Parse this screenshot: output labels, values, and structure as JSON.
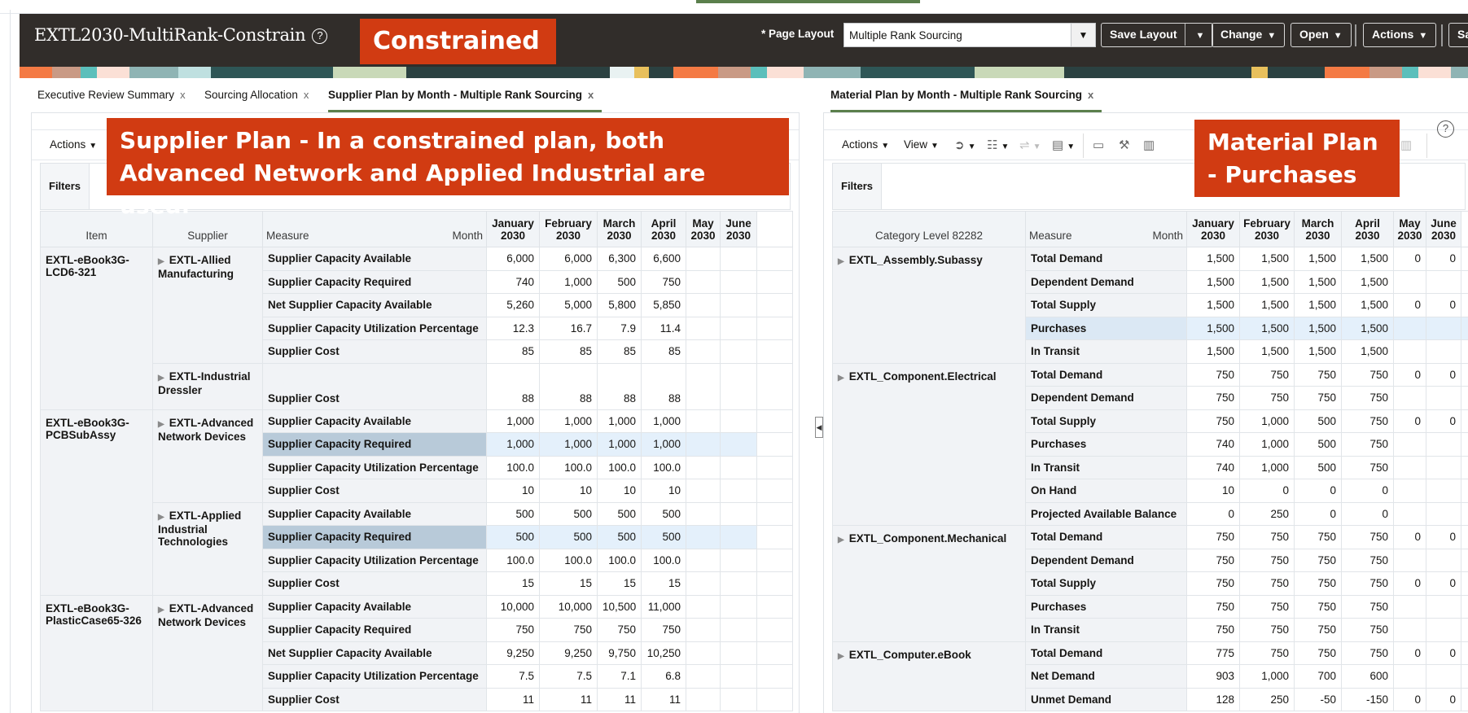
{
  "app": {
    "title": "EXTL2030-MultiRank-Constrain",
    "help_icon": "?",
    "callout_constrained": "Constrained"
  },
  "header": {
    "page_layout_label": "* Page Layout",
    "page_layout_value": "Multiple Rank Sourcing",
    "buttons": {
      "save_layout": "Save Layout",
      "change": "Change",
      "open": "Open",
      "actions": "Actions",
      "save_truncated": "Sa"
    },
    "caret": "▼"
  },
  "tabs_left": [
    {
      "label": "Executive Review Summary",
      "close": "x"
    },
    {
      "label": "Sourcing Allocation",
      "close": "x"
    },
    {
      "label": "Supplier Plan by Month - Multiple Rank Sourcing",
      "close": "x",
      "active": true
    }
  ],
  "tabs_right": [
    {
      "label": "Material Plan by Month - Multiple Rank Sourcing",
      "close": "x",
      "active": true
    }
  ],
  "left_panel": {
    "toolbar": {
      "actions": "Actions"
    },
    "filters_label": "Filters",
    "callout": "Supplier Plan - In a constrained plan, both Advanced Network and Applied Industrial are used.",
    "headers": {
      "item": "Item",
      "supplier": "Supplier",
      "measure": "Measure",
      "month_axis": "Month",
      "months": [
        "January 2030",
        "February 2030",
        "March 2030",
        "April 2030",
        "May 2030",
        "June 2030"
      ]
    },
    "groups": [
      {
        "item": "EXTL-eBook3G-LCD6-321",
        "suppliers": [
          {
            "name": "EXTL-Allied Manufacturing",
            "rows": [
              {
                "measure": "Supplier Capacity Available",
                "values": [
                  "6,000",
                  "6,000",
                  "6,300",
                  "6,600",
                  "",
                  ""
                ]
              },
              {
                "measure": "Supplier Capacity Required",
                "values": [
                  "740",
                  "1,000",
                  "500",
                  "750",
                  "",
                  ""
                ]
              },
              {
                "measure": "Net Supplier Capacity Available",
                "values": [
                  "5,260",
                  "5,000",
                  "5,800",
                  "5,850",
                  "",
                  ""
                ]
              },
              {
                "measure": "Supplier Capacity Utilization Percentage",
                "values": [
                  "12.3",
                  "16.7",
                  "7.9",
                  "11.4",
                  "",
                  ""
                ]
              },
              {
                "measure": "Supplier Cost",
                "values": [
                  "85",
                  "85",
                  "85",
                  "85",
                  "",
                  ""
                ]
              }
            ]
          },
          {
            "name": "EXTL-Industrial Dressler",
            "rows": [
              {
                "measure": "Supplier Cost",
                "values": [
                  "88",
                  "88",
                  "88",
                  "88",
                  "",
                  ""
                ]
              }
            ]
          }
        ]
      },
      {
        "item": "EXTL-eBook3G-PCBSubAssy",
        "suppliers": [
          {
            "name": "EXTL-Advanced Network Devices",
            "rows": [
              {
                "measure": "Supplier Capacity Available",
                "values": [
                  "1,000",
                  "1,000",
                  "1,000",
                  "1,000",
                  "",
                  ""
                ]
              },
              {
                "measure": "Supplier Capacity Required",
                "values": [
                  "1,000",
                  "1,000",
                  "1,000",
                  "1,000",
                  "",
                  ""
                ],
                "highlight": true
              },
              {
                "measure": "Supplier Capacity Utilization Percentage",
                "values": [
                  "100.0",
                  "100.0",
                  "100.0",
                  "100.0",
                  "",
                  ""
                ]
              },
              {
                "measure": "Supplier Cost",
                "values": [
                  "10",
                  "10",
                  "10",
                  "10",
                  "",
                  ""
                ]
              }
            ]
          },
          {
            "name": "EXTL-Applied Industrial Technologies",
            "rows": [
              {
                "measure": "Supplier Capacity Available",
                "values": [
                  "500",
                  "500",
                  "500",
                  "500",
                  "",
                  ""
                ]
              },
              {
                "measure": "Supplier Capacity Required",
                "values": [
                  "500",
                  "500",
                  "500",
                  "500",
                  "",
                  ""
                ],
                "highlight": true
              },
              {
                "measure": "Supplier Capacity Utilization Percentage",
                "values": [
                  "100.0",
                  "100.0",
                  "100.0",
                  "100.0",
                  "",
                  ""
                ]
              },
              {
                "measure": "Supplier Cost",
                "values": [
                  "15",
                  "15",
                  "15",
                  "15",
                  "",
                  ""
                ]
              }
            ]
          }
        ]
      },
      {
        "item": "EXTL-eBook3G-PlasticCase65-326",
        "suppliers": [
          {
            "name": "EXTL-Advanced Network Devices",
            "rows": [
              {
                "measure": "Supplier Capacity Available",
                "values": [
                  "10,000",
                  "10,000",
                  "10,500",
                  "11,000",
                  "",
                  ""
                ]
              },
              {
                "measure": "Supplier Capacity Required",
                "values": [
                  "750",
                  "750",
                  "750",
                  "750",
                  "",
                  ""
                ]
              },
              {
                "measure": "Net Supplier Capacity Available",
                "values": [
                  "9,250",
                  "9,250",
                  "9,750",
                  "10,250",
                  "",
                  ""
                ]
              },
              {
                "measure": "Supplier Capacity Utilization Percentage",
                "values": [
                  "7.5",
                  "7.5",
                  "7.1",
                  "6.8",
                  "",
                  ""
                ]
              },
              {
                "measure": "Supplier Cost",
                "values": [
                  "11",
                  "11",
                  "11",
                  "11",
                  "",
                  ""
                ]
              }
            ]
          }
        ]
      }
    ]
  },
  "right_panel": {
    "toolbar": {
      "actions": "Actions",
      "view": "View"
    },
    "filters_label": "Filters",
    "callout": "Material Plan - Purchases",
    "headers": {
      "category": "Category Level 82282",
      "measure": "Measure",
      "month_axis": "Month",
      "months": [
        "January 2030",
        "February 2030",
        "March 2030",
        "April 2030",
        "May 2030",
        "June 2030"
      ]
    },
    "groups": [
      {
        "category": "EXTL_Assembly.Subassy",
        "rows": [
          {
            "measure": "Total Demand",
            "values": [
              "1,500",
              "1,500",
              "1,500",
              "1,500",
              "0",
              "0"
            ]
          },
          {
            "measure": "Dependent Demand",
            "values": [
              "1,500",
              "1,500",
              "1,500",
              "1,500",
              "",
              ""
            ]
          },
          {
            "measure": "Total Supply",
            "values": [
              "1,500",
              "1,500",
              "1,500",
              "1,500",
              "0",
              "0"
            ]
          },
          {
            "measure": "Purchases",
            "values": [
              "1,500",
              "1,500",
              "1,500",
              "1,500",
              "",
              ""
            ],
            "highlight": true
          },
          {
            "measure": "In Transit",
            "values": [
              "1,500",
              "1,500",
              "1,500",
              "1,500",
              "",
              ""
            ]
          }
        ]
      },
      {
        "category": "EXTL_Component.Electrical",
        "rows": [
          {
            "measure": "Total Demand",
            "values": [
              "750",
              "750",
              "750",
              "750",
              "0",
              "0"
            ]
          },
          {
            "measure": "Dependent Demand",
            "values": [
              "750",
              "750",
              "750",
              "750",
              "",
              ""
            ]
          },
          {
            "measure": "Total Supply",
            "values": [
              "750",
              "1,000",
              "500",
              "750",
              "0",
              "0"
            ]
          },
          {
            "measure": "Purchases",
            "values": [
              "740",
              "1,000",
              "500",
              "750",
              "",
              ""
            ]
          },
          {
            "measure": "In Transit",
            "values": [
              "740",
              "1,000",
              "500",
              "750",
              "",
              ""
            ]
          },
          {
            "measure": "On Hand",
            "values": [
              "10",
              "0",
              "0",
              "0",
              "",
              ""
            ]
          },
          {
            "measure": "Projected Available Balance",
            "values": [
              "0",
              "250",
              "0",
              "0",
              "",
              ""
            ]
          }
        ]
      },
      {
        "category": "EXTL_Component.Mechanical",
        "rows": [
          {
            "measure": "Total Demand",
            "values": [
              "750",
              "750",
              "750",
              "750",
              "0",
              "0"
            ]
          },
          {
            "measure": "Dependent Demand",
            "values": [
              "750",
              "750",
              "750",
              "750",
              "",
              ""
            ]
          },
          {
            "measure": "Total Supply",
            "values": [
              "750",
              "750",
              "750",
              "750",
              "0",
              "0"
            ]
          },
          {
            "measure": "Purchases",
            "values": [
              "750",
              "750",
              "750",
              "750",
              "",
              ""
            ]
          },
          {
            "measure": "In Transit",
            "values": [
              "750",
              "750",
              "750",
              "750",
              "",
              ""
            ]
          }
        ]
      },
      {
        "category": "EXTL_Computer.eBook",
        "rows": [
          {
            "measure": "Total Demand",
            "values": [
              "775",
              "750",
              "750",
              "750",
              "0",
              "0"
            ]
          },
          {
            "measure": "Net Demand",
            "values": [
              "903",
              "1,000",
              "700",
              "600",
              "",
              ""
            ]
          },
          {
            "measure": "Unmet Demand",
            "values": [
              "128",
              "250",
              "-50",
              "-150",
              "0",
              "0"
            ]
          }
        ]
      }
    ]
  },
  "colors": {
    "header_bg": "#312d2a",
    "callout_bg": "#d13b12",
    "active_tab_underline": "#5b7f4c",
    "row_highlight": "#e4f0fb",
    "measure_selected": "#b8cad9"
  }
}
